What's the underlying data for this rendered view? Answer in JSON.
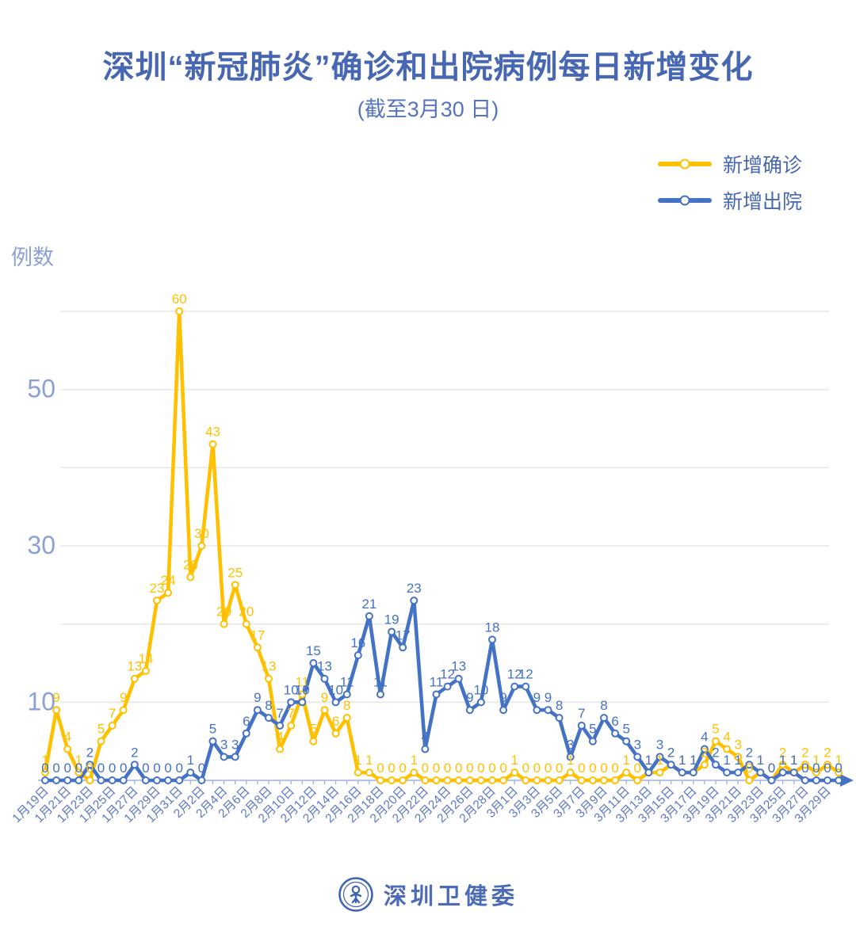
{
  "title": "深圳“新冠肺炎”确诊和出院病例每日新增变化",
  "subtitle": "(截至3月30 日)",
  "y_axis_title": "例数",
  "footer": {
    "brand": "深圳卫健委"
  },
  "colors": {
    "confirmed": "#FFC000",
    "discharged": "#4472C4",
    "gridline": "#e7e7e7",
    "axis_line": "#9db0e0",
    "date_label": "#5d78c6",
    "ytick_label": "#8ba0d4"
  },
  "chart_data": {
    "type": "line",
    "title": "深圳“新冠肺炎”确诊和出院病例每日新增变化",
    "subtitle": "(截至3月30 日)",
    "ylabel": "例数",
    "yticks": [
      10,
      30,
      50
    ],
    "ylim": [
      0,
      63
    ],
    "grid": "horizontal every 10, from 10 to 60",
    "legend_position": "top-right",
    "x_label_every": 2,
    "x": [
      "1月19日",
      "1月20日",
      "1月21日",
      "1月22日",
      "1月23日",
      "1月24日",
      "1月25日",
      "1月26日",
      "1月27日",
      "1月28日",
      "1月29日",
      "1月30日",
      "1月31日",
      "2月1日",
      "2月2日",
      "2月3日",
      "2月4日",
      "2月5日",
      "2月6日",
      "2月7日",
      "2月8日",
      "2月9日",
      "2月10日",
      "2月11日",
      "2月12日",
      "2月13日",
      "2月14日",
      "2月15日",
      "2月16日",
      "2月17日",
      "2月18日",
      "2月19日",
      "2月20日",
      "2月21日",
      "2月22日",
      "2月23日",
      "2月24日",
      "2月25日",
      "2月26日",
      "2月27日",
      "2月28日",
      "2月29日",
      "3月1日",
      "3月2日",
      "3月3日",
      "3月4日",
      "3月5日",
      "3月6日",
      "3月7日",
      "3月8日",
      "3月9日",
      "3月10日",
      "3月11日",
      "3月12日",
      "3月13日",
      "3月14日",
      "3月15日",
      "3月16日",
      "3月17日",
      "3月18日",
      "3月19日",
      "3月20日",
      "3月21日",
      "3月22日",
      "3月23日",
      "3月24日",
      "3月25日",
      "3月26日",
      "3月27日",
      "3月28日",
      "3月29日",
      "3月30日"
    ],
    "series": [
      {
        "name": "新增确诊",
        "color": "#FFC000",
        "values": [
          1,
          9,
          4,
          1,
          0,
          5,
          7,
          9,
          13,
          14,
          23,
          24,
          60,
          26,
          30,
          43,
          20,
          25,
          20,
          17,
          13,
          4,
          7,
          11,
          5,
          9,
          6,
          8,
          1,
          1,
          0,
          0,
          0,
          1,
          0,
          0,
          0,
          0,
          0,
          0,
          0,
          0,
          1,
          0,
          0,
          0,
          0,
          1,
          0,
          0,
          0,
          0,
          1,
          0,
          1,
          1,
          2,
          1,
          1,
          2,
          5,
          4,
          3,
          0,
          1,
          0,
          2,
          1,
          2,
          1,
          2,
          1
        ]
      },
      {
        "name": "新增出院",
        "color": "#4472C4",
        "values": [
          0,
          0,
          0,
          0,
          2,
          0,
          0,
          0,
          2,
          0,
          0,
          0,
          0,
          1,
          0,
          5,
          3,
          3,
          6,
          9,
          8,
          7,
          10,
          10,
          15,
          13,
          10,
          11,
          16,
          21,
          11,
          19,
          17,
          23,
          4,
          11,
          12,
          13,
          9,
          10,
          18,
          9,
          12,
          12,
          9,
          9,
          8,
          3,
          7,
          5,
          8,
          6,
          5,
          3,
          1,
          3,
          2,
          1,
          1,
          4,
          2,
          1,
          1,
          2,
          1,
          0,
          1,
          1,
          0,
          0,
          0,
          0
        ]
      }
    ]
  }
}
